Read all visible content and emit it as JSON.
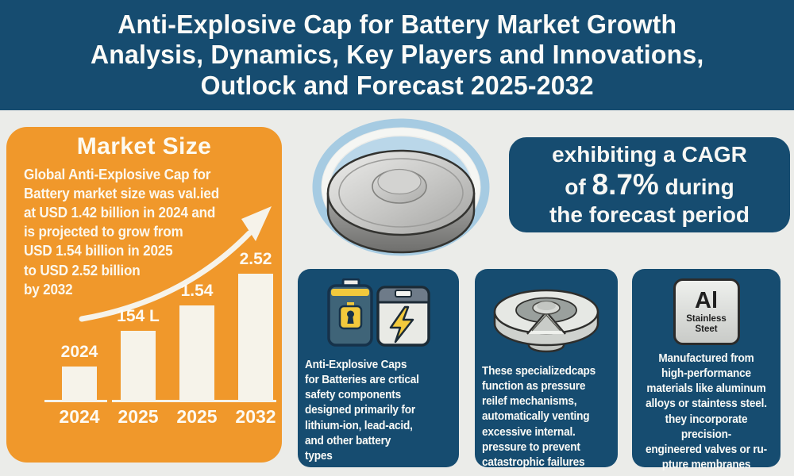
{
  "header": {
    "title": "Anti-Explosive Cap for Battery Market Growth\nAnalysis, Dynamics, Key Players and Innovations,\nOutlock and Forecast 2025-2032"
  },
  "market_size": {
    "heading": "Market Size",
    "body": "Global Anti-Explosive Cap for\nBattery market size was val.ied\nat USD 1.42 billion in 2024 and\nis projected to grow from\nUSD 1.54 billion in 2025\nto USD 2.52 billion\nby 2032"
  },
  "chart_data": {
    "type": "bar",
    "title": "Market Size",
    "categories": [
      "2024",
      "2025",
      "2025",
      "2032"
    ],
    "bar_labels": [
      "2024",
      "154 L",
      "1.54",
      "2.52"
    ],
    "values_relative": [
      0.27,
      0.55,
      0.75,
      1.0
    ],
    "bar_color": "#f6f3ea",
    "grid": false,
    "annotations": [
      "upward growth swoosh arrow"
    ]
  },
  "hero": {
    "image": "metallic-battery-safety-cap"
  },
  "cagr": {
    "line1": "exhibiting a CAGR",
    "line2_pre": "of ",
    "line2_value": "8.7%",
    "line2_post": " during",
    "line3": "the forecast period"
  },
  "cards": [
    {
      "icon": "battery-pair-icon",
      "text": "Anti-Explosive Caps\nfor Batteries are crtical\nsafety components\ndesigned primarily for\nlithium-ion, lead-acid,\nand other battery\ntypes"
    },
    {
      "icon": "pressure-valve-icon",
      "text": "These specializedcaps\nfunction as pressure\nreilef mechanisms,\nautomatically venting\nexcessive internal.\npressure to prevent\ncatastrophic failures"
    },
    {
      "icon": "aluminum-stainless-icon",
      "icon_label_main": "Al",
      "icon_label_sub": "Stainless\nSteet",
      "text": "Manufactured from\nhigh-performance\nmaterials like aluminum\nalloys or staintess steel.\nthey incorporate precision-\nengineered valves or ru-\npture membranes"
    }
  ],
  "colors": {
    "dark_blue": "#164c70",
    "orange": "#f0982b",
    "bar_fill": "#f6f3ea",
    "page_bg": "#ebece9",
    "ring_blue": "#a6cbe2",
    "ring_fill": "#bad7e9",
    "accent_yellow": "#f2c93c"
  }
}
